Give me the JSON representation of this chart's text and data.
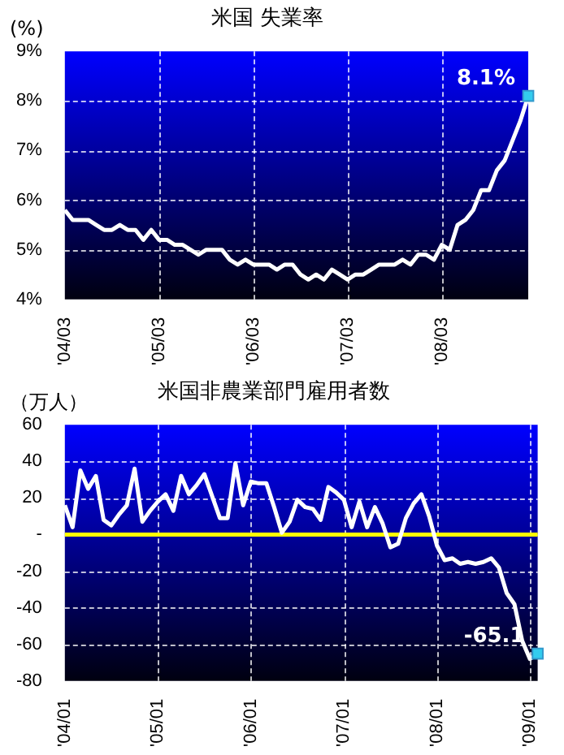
{
  "chart_data": [
    {
      "type": "line",
      "title": "米国 失業率",
      "ylabel": "(%)",
      "categories": [
        "'04/03",
        null,
        null,
        null,
        null,
        null,
        null,
        null,
        null,
        null,
        null,
        null,
        "'05/03",
        null,
        null,
        null,
        null,
        null,
        null,
        null,
        null,
        null,
        null,
        null,
        "'06/03",
        null,
        null,
        null,
        null,
        null,
        null,
        null,
        null,
        null,
        null,
        null,
        "'07/03",
        null,
        null,
        null,
        null,
        null,
        null,
        null,
        null,
        null,
        null,
        null,
        "'08/03",
        null,
        null,
        null,
        null,
        null,
        null,
        null,
        null,
        null,
        null,
        null
      ],
      "series": [
        {
          "color": "#ffffff",
          "values": [
            5.8,
            5.6,
            5.6,
            5.6,
            5.5,
            5.4,
            5.4,
            5.5,
            5.4,
            5.4,
            5.2,
            5.4,
            5.2,
            5.2,
            5.1,
            5.1,
            5.0,
            4.9,
            5.0,
            5.0,
            5.0,
            4.8,
            4.7,
            4.8,
            4.7,
            4.7,
            4.7,
            4.6,
            4.7,
            4.7,
            4.5,
            4.4,
            4.5,
            4.4,
            4.6,
            4.5,
            4.4,
            4.5,
            4.5,
            4.6,
            4.7,
            4.7,
            4.7,
            4.8,
            4.7,
            4.9,
            4.9,
            4.8,
            5.1,
            5.0,
            5.5,
            5.6,
            5.8,
            6.2,
            6.2,
            6.6,
            6.8,
            7.2,
            7.6,
            8.1
          ],
          "value_labels": [
            null,
            null,
            null,
            null,
            null,
            null,
            null,
            null,
            null,
            null,
            null,
            null,
            null,
            null,
            null,
            null,
            null,
            null,
            null,
            null,
            null,
            null,
            null,
            null,
            null,
            null,
            null,
            null,
            null,
            null,
            null,
            null,
            null,
            null,
            null,
            null,
            null,
            null,
            null,
            null,
            null,
            null,
            null,
            null,
            null,
            null,
            null,
            null,
            null,
            null,
            null,
            null,
            null,
            null,
            null,
            null,
            null,
            null,
            null,
            "8.1%"
          ]
        }
      ],
      "ylim": [
        4,
        9
      ],
      "yticks": [
        {
          "value": 4,
          "label": "4%"
        },
        {
          "value": 5,
          "label": "5%"
        },
        {
          "value": 6,
          "label": "6%"
        },
        {
          "value": 7,
          "label": "7%"
        },
        {
          "value": 8,
          "label": "8%"
        },
        {
          "value": 9,
          "label": "9%"
        }
      ],
      "grid": true,
      "legend": false
    },
    {
      "type": "line",
      "title": "米国非農業部門雇用者数",
      "ylabel": "（万人）",
      "categories": [
        "'04/01",
        null,
        null,
        null,
        null,
        null,
        null,
        null,
        null,
        null,
        null,
        null,
        "'05/01",
        null,
        null,
        null,
        null,
        null,
        null,
        null,
        null,
        null,
        null,
        null,
        "'06/01",
        null,
        null,
        null,
        null,
        null,
        null,
        null,
        null,
        null,
        null,
        null,
        "'07/01",
        null,
        null,
        null,
        null,
        null,
        null,
        null,
        null,
        null,
        null,
        null,
        "'08/01",
        null,
        null,
        null,
        null,
        null,
        null,
        null,
        null,
        null,
        null,
        null,
        "'09/01",
        null
      ],
      "series": [
        {
          "color": "#ffffff",
          "values": [
            16,
            4,
            35,
            25,
            32,
            8,
            5,
            11,
            16,
            36,
            7,
            13,
            18,
            22,
            13,
            32,
            22,
            27,
            33,
            21,
            9,
            9,
            39,
            16,
            29,
            28,
            28,
            15,
            1,
            7,
            19,
            15,
            14,
            8,
            26,
            23,
            19,
            4,
            18,
            4,
            15,
            6,
            -7,
            -5,
            9,
            17,
            22,
            10,
            -6,
            -14,
            -13,
            -16,
            -15,
            -16,
            -15,
            -13,
            -18,
            -32,
            -38,
            -58,
            -68,
            -65.1
          ],
          "value_labels": [
            null,
            null,
            null,
            null,
            null,
            null,
            null,
            null,
            null,
            null,
            null,
            null,
            null,
            null,
            null,
            null,
            null,
            null,
            null,
            null,
            null,
            null,
            null,
            null,
            null,
            null,
            null,
            null,
            null,
            null,
            null,
            null,
            null,
            null,
            null,
            null,
            null,
            null,
            null,
            null,
            null,
            null,
            null,
            null,
            null,
            null,
            null,
            null,
            null,
            null,
            null,
            null,
            null,
            null,
            null,
            null,
            null,
            null,
            null,
            null,
            null,
            "-65.1"
          ]
        }
      ],
      "ylim": [
        -80,
        60
      ],
      "yticks": [
        -80,
        -60,
        -40,
        -20,
        {
          "value": 0,
          "label": "-"
        },
        20,
        40,
        60
      ],
      "ref_lines": [
        {
          "axis": "y",
          "value": 0,
          "color": "#ffff00"
        }
      ],
      "grid": true,
      "legend": false
    }
  ]
}
